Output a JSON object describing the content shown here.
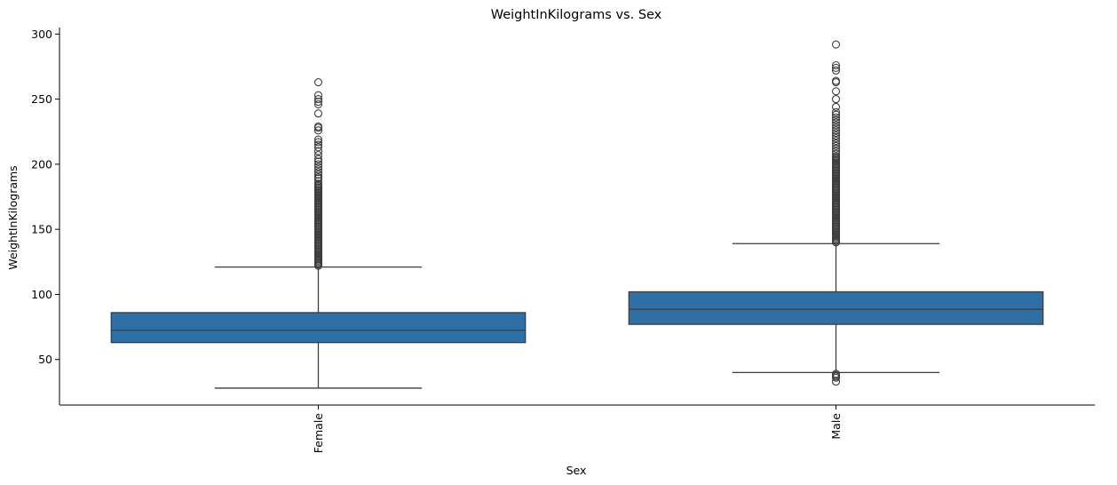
{
  "chart_data": {
    "type": "box",
    "title": "WeightInKilograms vs. Sex",
    "xlabel": "Sex",
    "ylabel": "WeightInKilograms",
    "categories": [
      "Female",
      "Male"
    ],
    "yticks": [
      50,
      100,
      150,
      200,
      250,
      300
    ],
    "ylim": [
      15,
      305
    ],
    "grid": false,
    "box_color": "#2e6fa6",
    "line_color": "#3d3d3d",
    "boxes": [
      {
        "name": "Female",
        "whisker_low": 28,
        "q1": 63,
        "median": 72.5,
        "q3": 86,
        "whisker_high": 121,
        "outliers": [
          122,
          123,
          124,
          125,
          126,
          127,
          128,
          129,
          130,
          131,
          132,
          133,
          134,
          135,
          136,
          137,
          138,
          139,
          140,
          141,
          142,
          143,
          144,
          145,
          146,
          147,
          148,
          149,
          150,
          151,
          152,
          153,
          154,
          155,
          156,
          157,
          158,
          159,
          160,
          161,
          162,
          163,
          164,
          165,
          166,
          167,
          168,
          169,
          170,
          171,
          172,
          173,
          174,
          175,
          176,
          177,
          178,
          179,
          180,
          181,
          182,
          183,
          184,
          185,
          187,
          189,
          190,
          192,
          194,
          196,
          198,
          200,
          202,
          204,
          207,
          210,
          213,
          215,
          217,
          219,
          226,
          228,
          229,
          239,
          246,
          248,
          250,
          253,
          263
        ]
      },
      {
        "name": "Male",
        "whisker_low": 40,
        "q1": 77,
        "median": 88.5,
        "q3": 102,
        "whisker_high": 139,
        "outliers": [
          33,
          36,
          37,
          38,
          39,
          140,
          141,
          142,
          143,
          144,
          145,
          146,
          147,
          148,
          149,
          150,
          151,
          152,
          153,
          154,
          155,
          156,
          157,
          158,
          159,
          160,
          161,
          162,
          163,
          164,
          165,
          166,
          167,
          168,
          169,
          170,
          171,
          172,
          173,
          174,
          175,
          176,
          177,
          178,
          179,
          180,
          181,
          182,
          183,
          184,
          185,
          186,
          187,
          188,
          189,
          190,
          191,
          192,
          193,
          194,
          195,
          196,
          197,
          198,
          199,
          200,
          201,
          202,
          203,
          204,
          205,
          206,
          208,
          210,
          212,
          214,
          216,
          218,
          220,
          222,
          224,
          226,
          228,
          230,
          232,
          234,
          236,
          238,
          240,
          244,
          250,
          256,
          263,
          264,
          272,
          274,
          276,
          292
        ]
      }
    ]
  }
}
